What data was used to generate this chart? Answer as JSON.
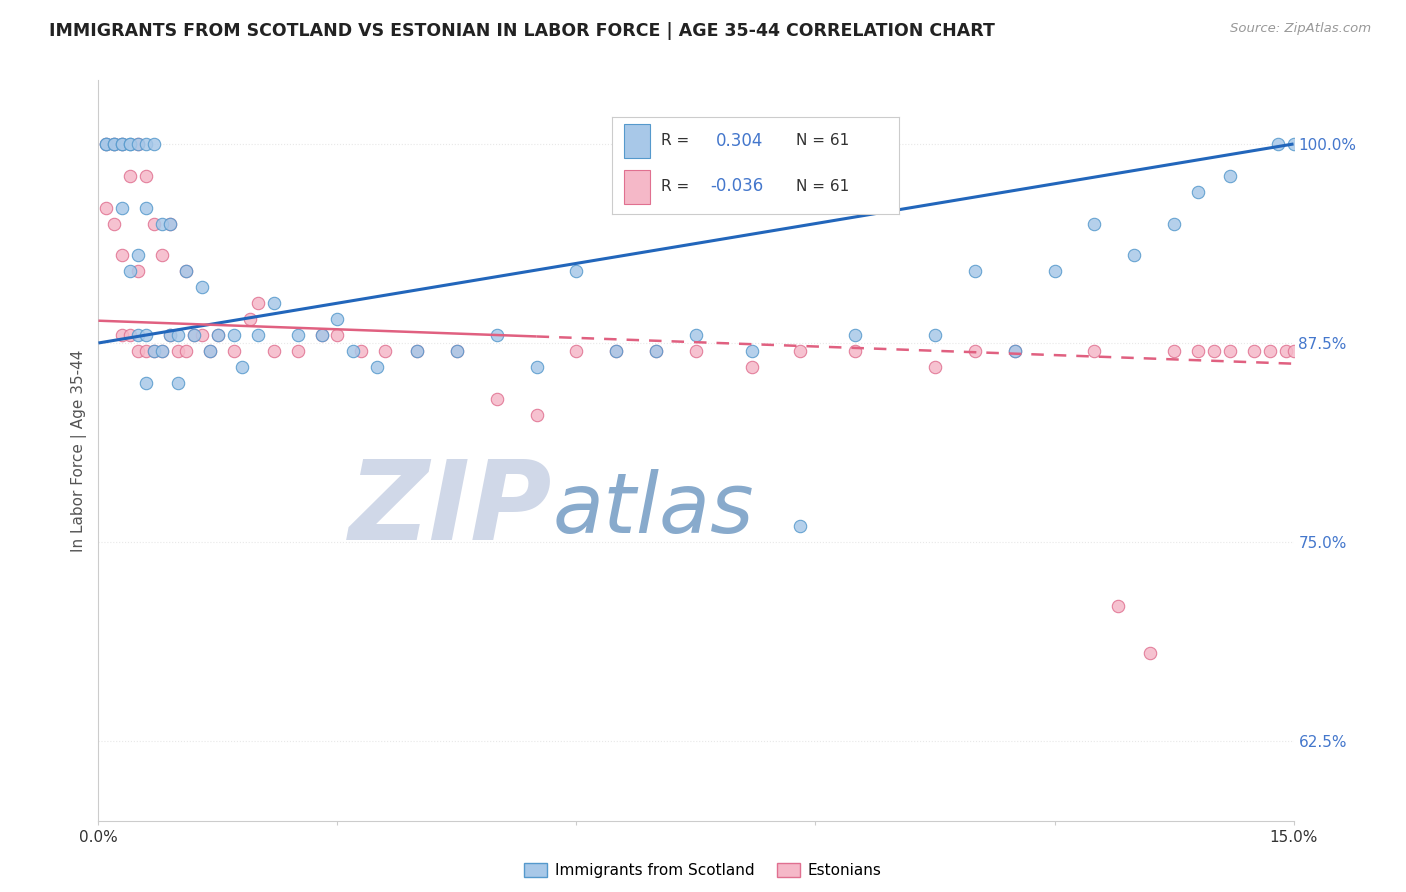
{
  "title": "IMMIGRANTS FROM SCOTLAND VS ESTONIAN IN LABOR FORCE | AGE 35-44 CORRELATION CHART",
  "source": "Source: ZipAtlas.com",
  "ylabel": "In Labor Force | Age 35-44",
  "xlim": [
    0.0,
    0.15
  ],
  "ylim": [
    0.575,
    1.04
  ],
  "yticks": [
    0.625,
    0.75,
    0.875,
    1.0
  ],
  "ytick_labels": [
    "62.5%",
    "75.0%",
    "87.5%",
    "100.0%"
  ],
  "xticks": [
    0.0,
    0.03,
    0.06,
    0.09,
    0.12,
    0.15
  ],
  "xtick_labels": [
    "0.0%",
    "",
    "",
    "",
    "",
    "15.0%"
  ],
  "scotland_color": "#a8c8e8",
  "scotland_edge_color": "#5599cc",
  "estonian_color": "#f5b8c8",
  "estonian_edge_color": "#e07090",
  "scotland_line_color": "#2266bb",
  "estonian_line_color": "#e06080",
  "watermark_zip": "ZIP",
  "watermark_atlas": "atlas",
  "watermark_color_zip": "#d0d8e8",
  "watermark_color_atlas": "#88aacc",
  "background_color": "#ffffff",
  "grid_color": "#e8e8e8",
  "legend_r1": "0.304",
  "legend_r2": "-0.036",
  "legend_n": "61",
  "scotland_x": [
    0.001,
    0.001,
    0.002,
    0.002,
    0.003,
    0.003,
    0.003,
    0.004,
    0.004,
    0.004,
    0.005,
    0.005,
    0.005,
    0.006,
    0.006,
    0.006,
    0.006,
    0.007,
    0.007,
    0.008,
    0.008,
    0.009,
    0.009,
    0.01,
    0.01,
    0.011,
    0.012,
    0.013,
    0.014,
    0.015,
    0.017,
    0.018,
    0.02,
    0.022,
    0.025,
    0.028,
    0.03,
    0.032,
    0.035,
    0.04,
    0.045,
    0.05,
    0.055,
    0.06,
    0.065,
    0.07,
    0.075,
    0.082,
    0.088,
    0.095,
    0.105,
    0.11,
    0.115,
    0.12,
    0.125,
    0.13,
    0.135,
    0.138,
    0.142,
    0.148,
    0.15
  ],
  "scotland_y": [
    1.0,
    1.0,
    1.0,
    1.0,
    1.0,
    1.0,
    0.96,
    1.0,
    1.0,
    0.92,
    1.0,
    0.93,
    0.88,
    1.0,
    0.96,
    0.88,
    0.85,
    1.0,
    0.87,
    0.95,
    0.87,
    0.95,
    0.88,
    0.88,
    0.85,
    0.92,
    0.88,
    0.91,
    0.87,
    0.88,
    0.88,
    0.86,
    0.88,
    0.9,
    0.88,
    0.88,
    0.89,
    0.87,
    0.86,
    0.87,
    0.87,
    0.88,
    0.86,
    0.92,
    0.87,
    0.87,
    0.88,
    0.87,
    0.76,
    0.88,
    0.88,
    0.92,
    0.87,
    0.92,
    0.95,
    0.93,
    0.95,
    0.97,
    0.98,
    1.0,
    1.0
  ],
  "estonian_x": [
    0.001,
    0.001,
    0.002,
    0.002,
    0.003,
    0.003,
    0.003,
    0.004,
    0.004,
    0.005,
    0.005,
    0.005,
    0.006,
    0.006,
    0.007,
    0.007,
    0.008,
    0.008,
    0.009,
    0.009,
    0.01,
    0.011,
    0.011,
    0.012,
    0.013,
    0.014,
    0.015,
    0.017,
    0.019,
    0.02,
    0.022,
    0.025,
    0.028,
    0.03,
    0.033,
    0.036,
    0.04,
    0.045,
    0.05,
    0.055,
    0.06,
    0.065,
    0.07,
    0.075,
    0.082,
    0.088,
    0.095,
    0.105,
    0.11,
    0.115,
    0.125,
    0.128,
    0.132,
    0.135,
    0.138,
    0.14,
    0.142,
    0.145,
    0.147,
    0.149,
    0.15
  ],
  "estonian_y": [
    1.0,
    0.96,
    1.0,
    0.95,
    1.0,
    0.93,
    0.88,
    0.98,
    0.88,
    1.0,
    0.92,
    0.87,
    0.98,
    0.87,
    0.95,
    0.87,
    0.93,
    0.87,
    0.95,
    0.88,
    0.87,
    0.92,
    0.87,
    0.88,
    0.88,
    0.87,
    0.88,
    0.87,
    0.89,
    0.9,
    0.87,
    0.87,
    0.88,
    0.88,
    0.87,
    0.87,
    0.87,
    0.87,
    0.84,
    0.83,
    0.87,
    0.87,
    0.87,
    0.87,
    0.86,
    0.87,
    0.87,
    0.86,
    0.87,
    0.87,
    0.87,
    0.71,
    0.68,
    0.87,
    0.87,
    0.87,
    0.87,
    0.87,
    0.87,
    0.87,
    0.87
  ]
}
